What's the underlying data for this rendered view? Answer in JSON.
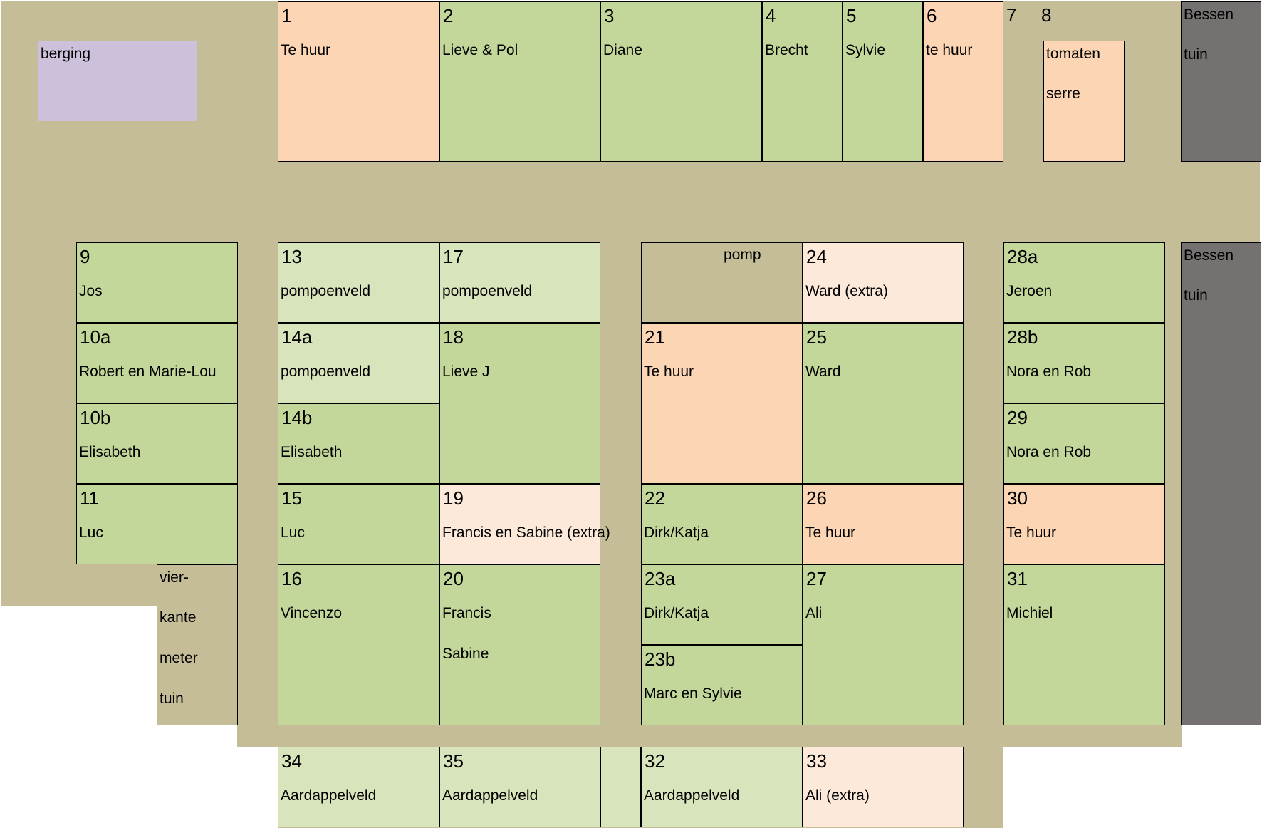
{
  "colors": {
    "background_path": "#c4bd97",
    "rented": "#c4d79b",
    "rented_light": "#d8e4bc",
    "for_rent": "#fcd5b4",
    "extra": "#fde9d9",
    "storage": "#ccc0da",
    "berry_garden": "#767171"
  },
  "plots": [
    {
      "id": "p-berging",
      "num": "",
      "lines": [
        "berging"
      ],
      "fill": "storage",
      "border": false
    },
    {
      "id": "p1",
      "num": "1",
      "lines": [
        "Te huur"
      ],
      "fill": "for_rent"
    },
    {
      "id": "p2",
      "num": "2",
      "lines": [
        "Lieve & Pol"
      ],
      "fill": "rented"
    },
    {
      "id": "p3",
      "num": "3",
      "lines": [
        "Diane"
      ],
      "fill": "rented"
    },
    {
      "id": "p4",
      "num": "4",
      "lines": [
        "Brecht"
      ],
      "fill": "rented"
    },
    {
      "id": "p5",
      "num": "5",
      "lines": [
        "Sylvie"
      ],
      "fill": "rented"
    },
    {
      "id": "p6",
      "num": "6",
      "lines": [
        "te huur"
      ],
      "fill": "for_rent"
    },
    {
      "id": "p7",
      "num": "7",
      "lines": [],
      "fill": "none",
      "border": false
    },
    {
      "id": "p8",
      "num": "8",
      "lines": [],
      "fill": "none",
      "border": false
    },
    {
      "id": "p-serre",
      "num": "",
      "lines": [
        "tomaten",
        "serre"
      ],
      "fill": "for_rent"
    },
    {
      "id": "p-bessen-top",
      "num": "",
      "lines": [
        "Bessen",
        "tuin"
      ],
      "fill": "berry_garden"
    },
    {
      "id": "p9",
      "num": "9",
      "lines": [
        "Jos"
      ],
      "fill": "rented"
    },
    {
      "id": "p10a",
      "num": "10a",
      "lines": [
        "Robert en Marie-Lou"
      ],
      "fill": "rented"
    },
    {
      "id": "p10b",
      "num": "10b",
      "lines": [
        "Elisabeth"
      ],
      "fill": "rented"
    },
    {
      "id": "p11",
      "num": "11",
      "lines": [
        "Luc"
      ],
      "fill": "rented"
    },
    {
      "id": "p-vierkante",
      "num": "",
      "lines": [
        "vier-",
        "kante",
        "meter",
        "tuin"
      ],
      "fill": "background_path"
    },
    {
      "id": "p13",
      "num": "13",
      "lines": [
        "pompoenveld"
      ],
      "fill": "rented_light"
    },
    {
      "id": "p14a",
      "num": "14a",
      "lines": [
        "pompoenveld"
      ],
      "fill": "rented_light"
    },
    {
      "id": "p14b",
      "num": "14b",
      "lines": [
        "Elisabeth"
      ],
      "fill": "rented"
    },
    {
      "id": "p15",
      "num": "15",
      "lines": [
        "Luc"
      ],
      "fill": "rented"
    },
    {
      "id": "p16",
      "num": "16",
      "lines": [
        "Vincenzo"
      ],
      "fill": "rented"
    },
    {
      "id": "p17",
      "num": "17",
      "lines": [
        "pompoenveld"
      ],
      "fill": "rented_light"
    },
    {
      "id": "p18",
      "num": "18",
      "lines": [
        "Lieve J"
      ],
      "fill": "rented"
    },
    {
      "id": "p19",
      "num": "19",
      "lines": [
        "Francis en Sabine (extra)"
      ],
      "fill": "extra"
    },
    {
      "id": "p20",
      "num": "20",
      "lines": [
        "Francis",
        "Sabine"
      ],
      "fill": "rented"
    },
    {
      "id": "p-pomp",
      "num": "",
      "lines": [
        "pomp"
      ],
      "fill": "background_path"
    },
    {
      "id": "p21",
      "num": "21",
      "lines": [
        "Te huur"
      ],
      "fill": "for_rent"
    },
    {
      "id": "p22",
      "num": "22",
      "lines": [
        "Dirk/Katja"
      ],
      "fill": "rented"
    },
    {
      "id": "p23a",
      "num": "23a",
      "lines": [
        "Dirk/Katja"
      ],
      "fill": "rented"
    },
    {
      "id": "p23b",
      "num": "23b",
      "lines": [
        "Marc  en Sylvie"
      ],
      "fill": "rented"
    },
    {
      "id": "p24",
      "num": "24",
      "lines": [
        "Ward (extra)"
      ],
      "fill": "extra"
    },
    {
      "id": "p25",
      "num": "25",
      "lines": [
        "Ward"
      ],
      "fill": "rented"
    },
    {
      "id": "p26",
      "num": "26",
      "lines": [
        "Te huur"
      ],
      "fill": "for_rent"
    },
    {
      "id": "p27",
      "num": "27",
      "lines": [
        "Ali"
      ],
      "fill": "rented"
    },
    {
      "id": "p28a",
      "num": "28a",
      "lines": [
        "Jeroen"
      ],
      "fill": "rented"
    },
    {
      "id": "p28b",
      "num": "28b",
      "lines": [
        "Nora en Rob"
      ],
      "fill": "rented"
    },
    {
      "id": "p29",
      "num": "29",
      "lines": [
        "Nora en Rob"
      ],
      "fill": "rented"
    },
    {
      "id": "p30",
      "num": "30",
      "lines": [
        "Te huur"
      ],
      "fill": "for_rent"
    },
    {
      "id": "p31",
      "num": "31",
      "lines": [
        "Michiel"
      ],
      "fill": "rented"
    },
    {
      "id": "p-bessen-right",
      "num": "",
      "lines": [
        "Bessen",
        "tuin"
      ],
      "fill": "berry_garden"
    },
    {
      "id": "p34",
      "num": "34",
      "lines": [
        "Aardappelveld"
      ],
      "fill": "rented_light"
    },
    {
      "id": "p35",
      "num": "35",
      "lines": [
        "Aardappelveld"
      ],
      "fill": "rented_light"
    },
    {
      "id": "p-gap",
      "num": "",
      "lines": [],
      "fill": "rented_light"
    },
    {
      "id": "p32",
      "num": "32",
      "lines": [
        "Aardappelveld"
      ],
      "fill": "rented_light"
    },
    {
      "id": "p33",
      "num": "33",
      "lines": [
        "Ali (extra)"
      ],
      "fill": "extra"
    }
  ]
}
